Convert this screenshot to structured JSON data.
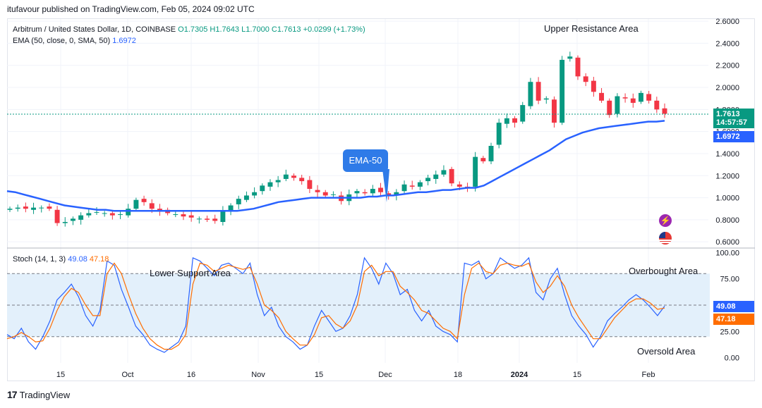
{
  "header": {
    "published": "itufavour published on TradingView.com, Feb 05, 2024 09:02 UTC"
  },
  "legend": {
    "symbol": "Arbitrum / United States Dollar, 1D, COINBASE",
    "open": "O1.7305",
    "high": "H1.7643",
    "low": "L1.7000",
    "close": "C1.7613",
    "change": "+0.0299 (+1.73%)",
    "ema_label": "EMA (50, close, 0, SMA, 50)",
    "ema_value": "1.6972",
    "stoch_label": "Stoch (14, 1, 3)",
    "stoch_k": "49.08",
    "stoch_d": "47.18"
  },
  "price_badges": {
    "last_price": "1.7613",
    "countdown": "14:57:57",
    "ema": "1.6972"
  },
  "annotations": {
    "upper_resistance": "Upper Resistance Area",
    "lower_support": "Lower Support Area",
    "overbought": "Overbought Area",
    "oversold": "Oversold Area",
    "ema_callout": "EMA-50"
  },
  "footer": {
    "brand": "TradingView"
  },
  "colors": {
    "up": "#089981",
    "down": "#f23645",
    "ema": "#2962ff",
    "stoch_k": "#2962ff",
    "stoch_d": "#ff6d00",
    "band": "#e3f0fb"
  },
  "icons": [
    "lightning-icon",
    "us-flag-icon",
    "tradingview-logo-icon"
  ],
  "chart_data": [
    {
      "type": "candlestick",
      "title": "Arbitrum / United States Dollar, 1D, COINBASE",
      "y_ticks": [
        0.6,
        0.8,
        1.0,
        1.2,
        1.4,
        1.6,
        1.8,
        2.0,
        2.2,
        2.4,
        2.6
      ],
      "y_tick_labels": [
        "0.6000",
        "0.8000",
        "1.0000",
        "1.2000",
        "1.4000",
        "1.6000",
        "1.8000",
        "2.0000",
        "2.2000",
        "2.4000",
        "2.6000"
      ],
      "ylim": [
        0.55,
        2.62
      ],
      "x_tick_labels": [
        "15",
        "Oct",
        "16",
        "Nov",
        "15",
        "Dec",
        "18",
        "2024",
        "15",
        "Feb"
      ],
      "close_path": [
        0.9,
        0.91,
        0.9,
        0.91,
        0.91,
        0.9,
        0.77,
        0.78,
        0.81,
        0.84,
        0.86,
        0.87,
        0.86,
        0.84,
        0.85,
        0.9,
        0.98,
        0.96,
        0.9,
        0.88,
        0.86,
        0.85,
        0.83,
        0.82,
        0.81,
        0.8,
        0.79,
        0.88,
        0.93,
        0.99,
        1.02,
        1.05,
        1.11,
        1.14,
        1.16,
        1.21,
        1.18,
        1.15,
        1.08,
        1.05,
        1.02,
        1.03,
        0.97,
        1.03,
        1.06,
        1.04,
        1.08,
        1.05,
        1.02,
        1.05,
        1.12,
        1.1,
        1.14,
        1.18,
        1.21,
        1.25,
        1.13,
        1.1,
        1.09,
        1.37,
        1.33,
        1.47,
        1.68,
        1.72,
        1.68,
        1.84,
        2.05,
        1.88,
        1.9,
        1.68,
        2.25,
        2.28,
        2.1,
        2.05,
        1.96,
        1.88,
        1.75,
        1.92,
        1.9,
        1.86,
        1.95,
        1.88,
        1.8,
        1.7613
      ],
      "ema_path": [
        1.06,
        1.05,
        1.03,
        1.01,
        0.99,
        0.97,
        0.95,
        0.93,
        0.92,
        0.91,
        0.9,
        0.89,
        0.89,
        0.88,
        0.88,
        0.88,
        0.88,
        0.88,
        0.88,
        0.88,
        0.88,
        0.88,
        0.88,
        0.88,
        0.88,
        0.88,
        0.88,
        0.88,
        0.88,
        0.89,
        0.9,
        0.92,
        0.94,
        0.96,
        0.97,
        0.98,
        0.99,
        1.0,
        1.0,
        1.0,
        1.0,
        1.0,
        1.0,
        1.0,
        1.01,
        1.01,
        1.02,
        1.02,
        1.03,
        1.04,
        1.05,
        1.05,
        1.06,
        1.07,
        1.07,
        1.08,
        1.09,
        1.09,
        1.11,
        1.15,
        1.19,
        1.23,
        1.27,
        1.31,
        1.35,
        1.39,
        1.43,
        1.48,
        1.53,
        1.56,
        1.59,
        1.61,
        1.63,
        1.64,
        1.65,
        1.66,
        1.67,
        1.68,
        1.69,
        1.69,
        1.6972
      ]
    },
    {
      "type": "line",
      "title": "Stoch (14, 1, 3)",
      "y_ticks": [
        0,
        25,
        75,
        100
      ],
      "y_tick_labels": [
        "0.00",
        "25.00",
        "75.00",
        "100.00"
      ],
      "bands": [
        20,
        80
      ],
      "midline": 50,
      "ylim": [
        -5,
        103
      ],
      "series": [
        {
          "name": "%K",
          "values": [
            22,
            18,
            28,
            15,
            8,
            20,
            35,
            55,
            62,
            70,
            58,
            40,
            30,
            45,
            92,
            88,
            65,
            48,
            30,
            22,
            12,
            8,
            5,
            10,
            15,
            30,
            95,
            92,
            85,
            78,
            88,
            90,
            85,
            80,
            90,
            60,
            40,
            48,
            30,
            20,
            15,
            8,
            12,
            30,
            45,
            35,
            25,
            28,
            40,
            60,
            95,
            85,
            70,
            90,
            80,
            60,
            65,
            45,
            35,
            45,
            30,
            25,
            22,
            15,
            90,
            88,
            92,
            75,
            80,
            95,
            90,
            85,
            88,
            95,
            62,
            55,
            75,
            85,
            60,
            40,
            30,
            22,
            10,
            20,
            35,
            42,
            48,
            55,
            60,
            55,
            48,
            40,
            49.08
          ]
        },
        {
          "name": "%D",
          "values": [
            18,
            20,
            24,
            20,
            15,
            16,
            28,
            45,
            58,
            66,
            62,
            50,
            40,
            40,
            80,
            90,
            80,
            60,
            42,
            28,
            18,
            12,
            8,
            8,
            12,
            22,
            70,
            90,
            88,
            82,
            85,
            88,
            86,
            84,
            86,
            70,
            50,
            45,
            38,
            25,
            18,
            12,
            12,
            22,
            38,
            40,
            32,
            28,
            35,
            50,
            82,
            88,
            78,
            82,
            82,
            68,
            62,
            55,
            45,
            42,
            35,
            28,
            25,
            18,
            60,
            85,
            90,
            82,
            80,
            88,
            90,
            88,
            87,
            90,
            72,
            62,
            68,
            78,
            68,
            50,
            38,
            28,
            18,
            18,
            28,
            38,
            45,
            52,
            56,
            56,
            52,
            46,
            47.18
          ]
        }
      ]
    }
  ]
}
